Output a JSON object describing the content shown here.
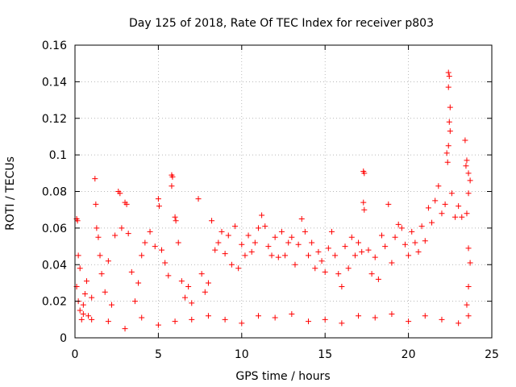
{
  "chart_data": {
    "type": "scatter",
    "title": "Day 125 of 2018, Rate Of TEC Index for receiver p803",
    "xlabel": "GPS time / hours",
    "ylabel": "ROTI / TECUs",
    "xlim": [
      0,
      25
    ],
    "ylim": [
      0,
      0.16
    ],
    "xticks": [
      0,
      5,
      10,
      15,
      20,
      25
    ],
    "xtick_labels": [
      "0",
      "5",
      "10",
      "15",
      "20",
      "25"
    ],
    "yticks": [
      0,
      0.02,
      0.04,
      0.06,
      0.08,
      0.1,
      0.12,
      0.14,
      0.16
    ],
    "ytick_labels": [
      "0",
      "0.02",
      "0.04",
      "0.06",
      "0.08",
      "0.1",
      "0.12",
      "0.14",
      "0.16"
    ],
    "grid": true,
    "marker": "plus",
    "color": "#ff0000",
    "series": [
      {
        "name": "ROTI",
        "points": [
          [
            0.1,
            0.065
          ],
          [
            0.15,
            0.064
          ],
          [
            0.2,
            0.045
          ],
          [
            0.3,
            0.038
          ],
          [
            0.1,
            0.028
          ],
          [
            0.2,
            0.02
          ],
          [
            0.3,
            0.015
          ],
          [
            0.4,
            0.01
          ],
          [
            0.5,
            0.018
          ],
          [
            0.6,
            0.024
          ],
          [
            0.7,
            0.031
          ],
          [
            0.8,
            0.012
          ],
          [
            1.0,
            0.022
          ],
          [
            1.2,
            0.087
          ],
          [
            1.25,
            0.073
          ],
          [
            1.3,
            0.06
          ],
          [
            1.4,
            0.055
          ],
          [
            1.5,
            0.045
          ],
          [
            1.6,
            0.035
          ],
          [
            1.8,
            0.025
          ],
          [
            2.0,
            0.042
          ],
          [
            2.2,
            0.018
          ],
          [
            2.4,
            0.056
          ],
          [
            2.6,
            0.08
          ],
          [
            2.7,
            0.079
          ],
          [
            2.8,
            0.06
          ],
          [
            3.0,
            0.074
          ],
          [
            3.1,
            0.073
          ],
          [
            3.2,
            0.057
          ],
          [
            3.4,
            0.036
          ],
          [
            3.6,
            0.02
          ],
          [
            3.8,
            0.03
          ],
          [
            4.0,
            0.045
          ],
          [
            4.2,
            0.052
          ],
          [
            4.5,
            0.058
          ],
          [
            4.8,
            0.05
          ],
          [
            5.0,
            0.076
          ],
          [
            5.05,
            0.072
          ],
          [
            5.2,
            0.048
          ],
          [
            5.4,
            0.041
          ],
          [
            5.6,
            0.034
          ],
          [
            5.8,
            0.089
          ],
          [
            5.85,
            0.088
          ],
          [
            5.8,
            0.083
          ],
          [
            6.0,
            0.066
          ],
          [
            6.05,
            0.064
          ],
          [
            6.2,
            0.052
          ],
          [
            6.4,
            0.031
          ],
          [
            6.6,
            0.022
          ],
          [
            6.8,
            0.028
          ],
          [
            7.0,
            0.019
          ],
          [
            7.4,
            0.076
          ],
          [
            7.6,
            0.035
          ],
          [
            7.8,
            0.025
          ],
          [
            8.0,
            0.03
          ],
          [
            8.2,
            0.064
          ],
          [
            8.4,
            0.048
          ],
          [
            8.6,
            0.052
          ],
          [
            8.8,
            0.058
          ],
          [
            9.0,
            0.046
          ],
          [
            9.2,
            0.056
          ],
          [
            9.4,
            0.04
          ],
          [
            9.6,
            0.061
          ],
          [
            9.8,
            0.038
          ],
          [
            10.0,
            0.051
          ],
          [
            10.2,
            0.045
          ],
          [
            10.4,
            0.056
          ],
          [
            10.6,
            0.047
          ],
          [
            10.8,
            0.052
          ],
          [
            11.0,
            0.06
          ],
          [
            11.2,
            0.067
          ],
          [
            11.4,
            0.061
          ],
          [
            11.6,
            0.05
          ],
          [
            11.8,
            0.045
          ],
          [
            12.0,
            0.055
          ],
          [
            12.2,
            0.044
          ],
          [
            12.4,
            0.058
          ],
          [
            12.6,
            0.045
          ],
          [
            12.8,
            0.052
          ],
          [
            13.0,
            0.055
          ],
          [
            13.2,
            0.04
          ],
          [
            13.4,
            0.051
          ],
          [
            13.6,
            0.065
          ],
          [
            13.8,
            0.058
          ],
          [
            14.0,
            0.045
          ],
          [
            14.2,
            0.052
          ],
          [
            14.4,
            0.038
          ],
          [
            14.6,
            0.047
          ],
          [
            14.8,
            0.042
          ],
          [
            15.0,
            0.036
          ],
          [
            15.2,
            0.049
          ],
          [
            15.4,
            0.058
          ],
          [
            15.6,
            0.045
          ],
          [
            15.8,
            0.035
          ],
          [
            16.0,
            0.028
          ],
          [
            16.2,
            0.05
          ],
          [
            16.4,
            0.038
          ],
          [
            16.6,
            0.055
          ],
          [
            16.8,
            0.045
          ],
          [
            17.0,
            0.052
          ],
          [
            17.2,
            0.047
          ],
          [
            17.3,
            0.091
          ],
          [
            17.35,
            0.09
          ],
          [
            17.3,
            0.074
          ],
          [
            17.35,
            0.07
          ],
          [
            17.6,
            0.048
          ],
          [
            17.8,
            0.035
          ],
          [
            18.0,
            0.044
          ],
          [
            18.2,
            0.032
          ],
          [
            18.4,
            0.056
          ],
          [
            18.6,
            0.05
          ],
          [
            18.8,
            0.073
          ],
          [
            19.0,
            0.041
          ],
          [
            19.2,
            0.055
          ],
          [
            19.4,
            0.062
          ],
          [
            19.6,
            0.06
          ],
          [
            19.8,
            0.051
          ],
          [
            20.0,
            0.045
          ],
          [
            20.2,
            0.058
          ],
          [
            20.4,
            0.052
          ],
          [
            20.6,
            0.047
          ],
          [
            20.8,
            0.061
          ],
          [
            21.0,
            0.053
          ],
          [
            21.2,
            0.071
          ],
          [
            21.4,
            0.063
          ],
          [
            21.6,
            0.075
          ],
          [
            21.8,
            0.083
          ],
          [
            22.0,
            0.068
          ],
          [
            22.2,
            0.073
          ],
          [
            22.3,
            0.101
          ],
          [
            22.35,
            0.096
          ],
          [
            22.4,
            0.145
          ],
          [
            22.45,
            0.143
          ],
          [
            22.4,
            0.137
          ],
          [
            22.5,
            0.126
          ],
          [
            22.45,
            0.118
          ],
          [
            22.5,
            0.113
          ],
          [
            22.4,
            0.105
          ],
          [
            22.6,
            0.079
          ],
          [
            22.8,
            0.066
          ],
          [
            23.0,
            0.072
          ],
          [
            23.2,
            0.066
          ],
          [
            23.4,
            0.108
          ],
          [
            23.5,
            0.097
          ],
          [
            23.45,
            0.094
          ],
          [
            23.6,
            0.09
          ],
          [
            23.7,
            0.086
          ],
          [
            23.6,
            0.079
          ],
          [
            23.5,
            0.068
          ],
          [
            23.6,
            0.049
          ],
          [
            23.7,
            0.041
          ],
          [
            23.6,
            0.028
          ],
          [
            23.5,
            0.018
          ],
          [
            23.6,
            0.012
          ],
          [
            23.0,
            0.008
          ],
          [
            22.0,
            0.01
          ],
          [
            21.0,
            0.012
          ],
          [
            20.0,
            0.009
          ],
          [
            19.0,
            0.013
          ],
          [
            18.0,
            0.011
          ],
          [
            17.0,
            0.012
          ],
          [
            16.0,
            0.008
          ],
          [
            15.0,
            0.01
          ],
          [
            14.0,
            0.009
          ],
          [
            13.0,
            0.013
          ],
          [
            12.0,
            0.011
          ],
          [
            11.0,
            0.012
          ],
          [
            10.0,
            0.008
          ],
          [
            9.0,
            0.01
          ],
          [
            8.0,
            0.012
          ],
          [
            7.0,
            0.01
          ],
          [
            6.0,
            0.009
          ],
          [
            5.0,
            0.007
          ],
          [
            4.0,
            0.011
          ],
          [
            3.0,
            0.005
          ],
          [
            2.0,
            0.009
          ],
          [
            1.0,
            0.01
          ],
          [
            0.5,
            0.013
          ]
        ]
      }
    ]
  }
}
